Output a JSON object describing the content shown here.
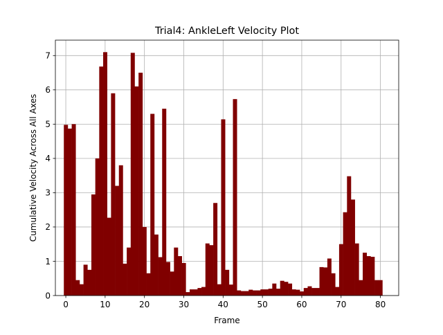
{
  "chart_data": {
    "type": "bar",
    "title": "Trial4: AnkleLeft Velocity Plot",
    "xlabel": "Frame",
    "ylabel": "Cumulative Velocity Across All Axes",
    "xlim": [
      -2.65,
      84.65
    ],
    "ylim": [
      0,
      7.45
    ],
    "xticks": [
      "0",
      "10",
      "20",
      "30",
      "40",
      "50",
      "60",
      "70",
      "80"
    ],
    "xtick_values": [
      0,
      10,
      20,
      30,
      40,
      50,
      60,
      70,
      80
    ],
    "yticks": [
      "0",
      "1",
      "2",
      "3",
      "4",
      "5",
      "6",
      "7"
    ],
    "ytick_values": [
      0,
      1,
      2,
      3,
      4,
      5,
      6,
      7
    ],
    "grid": true,
    "bar_color": "#800000",
    "x": [
      0,
      1,
      2,
      3,
      4,
      5,
      6,
      7,
      8,
      9,
      10,
      11,
      12,
      13,
      14,
      15,
      16,
      17,
      18,
      19,
      20,
      21,
      22,
      23,
      24,
      25,
      26,
      27,
      28,
      29,
      30,
      31,
      32,
      33,
      34,
      35,
      36,
      37,
      38,
      39,
      40,
      41,
      42,
      43,
      44,
      45,
      46,
      47,
      48,
      49,
      50,
      51,
      52,
      53,
      54,
      55,
      56,
      57,
      58,
      59,
      60,
      61,
      62,
      63,
      64,
      65,
      66,
      67,
      68,
      69,
      70,
      71,
      72,
      73,
      74,
      75,
      76,
      77,
      78,
      79,
      80
    ],
    "values": [
      4.98,
      4.87,
      5.0,
      0.45,
      0.33,
      0.9,
      0.75,
      2.95,
      4.0,
      6.68,
      7.1,
      2.27,
      5.9,
      3.2,
      3.8,
      0.93,
      1.4,
      7.08,
      6.1,
      6.5,
      2.0,
      0.65,
      5.3,
      1.78,
      1.12,
      5.45,
      0.98,
      0.7,
      1.4,
      1.15,
      0.95,
      0.1,
      0.18,
      0.18,
      0.22,
      0.25,
      1.52,
      1.47,
      2.7,
      0.33,
      5.14,
      0.75,
      0.32,
      5.73,
      0.15,
      0.13,
      0.13,
      0.17,
      0.15,
      0.15,
      0.18,
      0.18,
      0.2,
      0.35,
      0.2,
      0.43,
      0.4,
      0.35,
      0.18,
      0.17,
      0.12,
      0.22,
      0.27,
      0.22,
      0.22,
      0.83,
      0.82,
      1.08,
      0.65,
      0.25,
      1.5,
      2.43,
      3.48,
      2.8,
      1.52,
      0.45,
      1.25,
      1.15,
      1.13,
      0.45,
      0.45
    ]
  }
}
